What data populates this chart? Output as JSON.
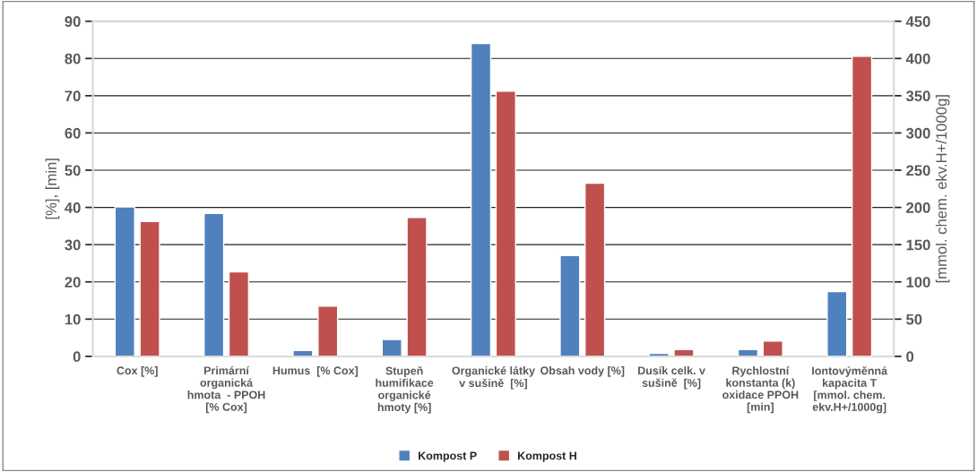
{
  "chart_data": {
    "type": "bar",
    "categories": [
      "Cox [%]",
      "Primární\norganická\nhmota  - PPOH\n[% Cox]",
      "Humus  [% Cox]",
      "Stupeň\nhumifikace\norganické\nhmoty [%]",
      "Organické látky\nv sušině  [%]",
      "Obsah vody [%]",
      "Dusík celk. v\nsušině  [%]",
      "Rychlostní\nkonstanta (k)\noxidace PPOH\n[min]",
      "Iontovýměnná\nkapacita T\n[mmol. chem.\nekv.H+/1000g]"
    ],
    "series": [
      {
        "name": "Kompost P",
        "color": "#4f81bd",
        "values": [
          40.1,
          38.4,
          1.6,
          4.5,
          84.0,
          27.1,
          0.8,
          1.8,
          null
        ]
      },
      {
        "name": "Kompost H",
        "color": "#c0504d",
        "values": [
          36.2,
          22.7,
          13.5,
          37.3,
          71.2,
          46.5,
          1.8,
          4.1,
          null
        ]
      },
      {
        "color": "#4f81bd",
        "axis": "y2",
        "values": [
          null,
          null,
          null,
          null,
          null,
          null,
          null,
          null,
          87
        ]
      },
      {
        "color": "#c0504d",
        "axis": "y2",
        "values": [
          null,
          null,
          null,
          null,
          null,
          null,
          null,
          null,
          403
        ]
      }
    ],
    "ylabel": "[%], [min]",
    "y2label": "[mmol. chem. ekv.H+/1000g]",
    "ylim": [
      0,
      90
    ],
    "yticks": [
      0,
      10,
      20,
      30,
      40,
      50,
      60,
      70,
      80,
      90
    ],
    "y2lim": [
      0,
      450
    ],
    "y2ticks": [
      0,
      50,
      100,
      150,
      200,
      250,
      300,
      350,
      400,
      450
    ],
    "grid": "y",
    "legend": "bottom"
  }
}
